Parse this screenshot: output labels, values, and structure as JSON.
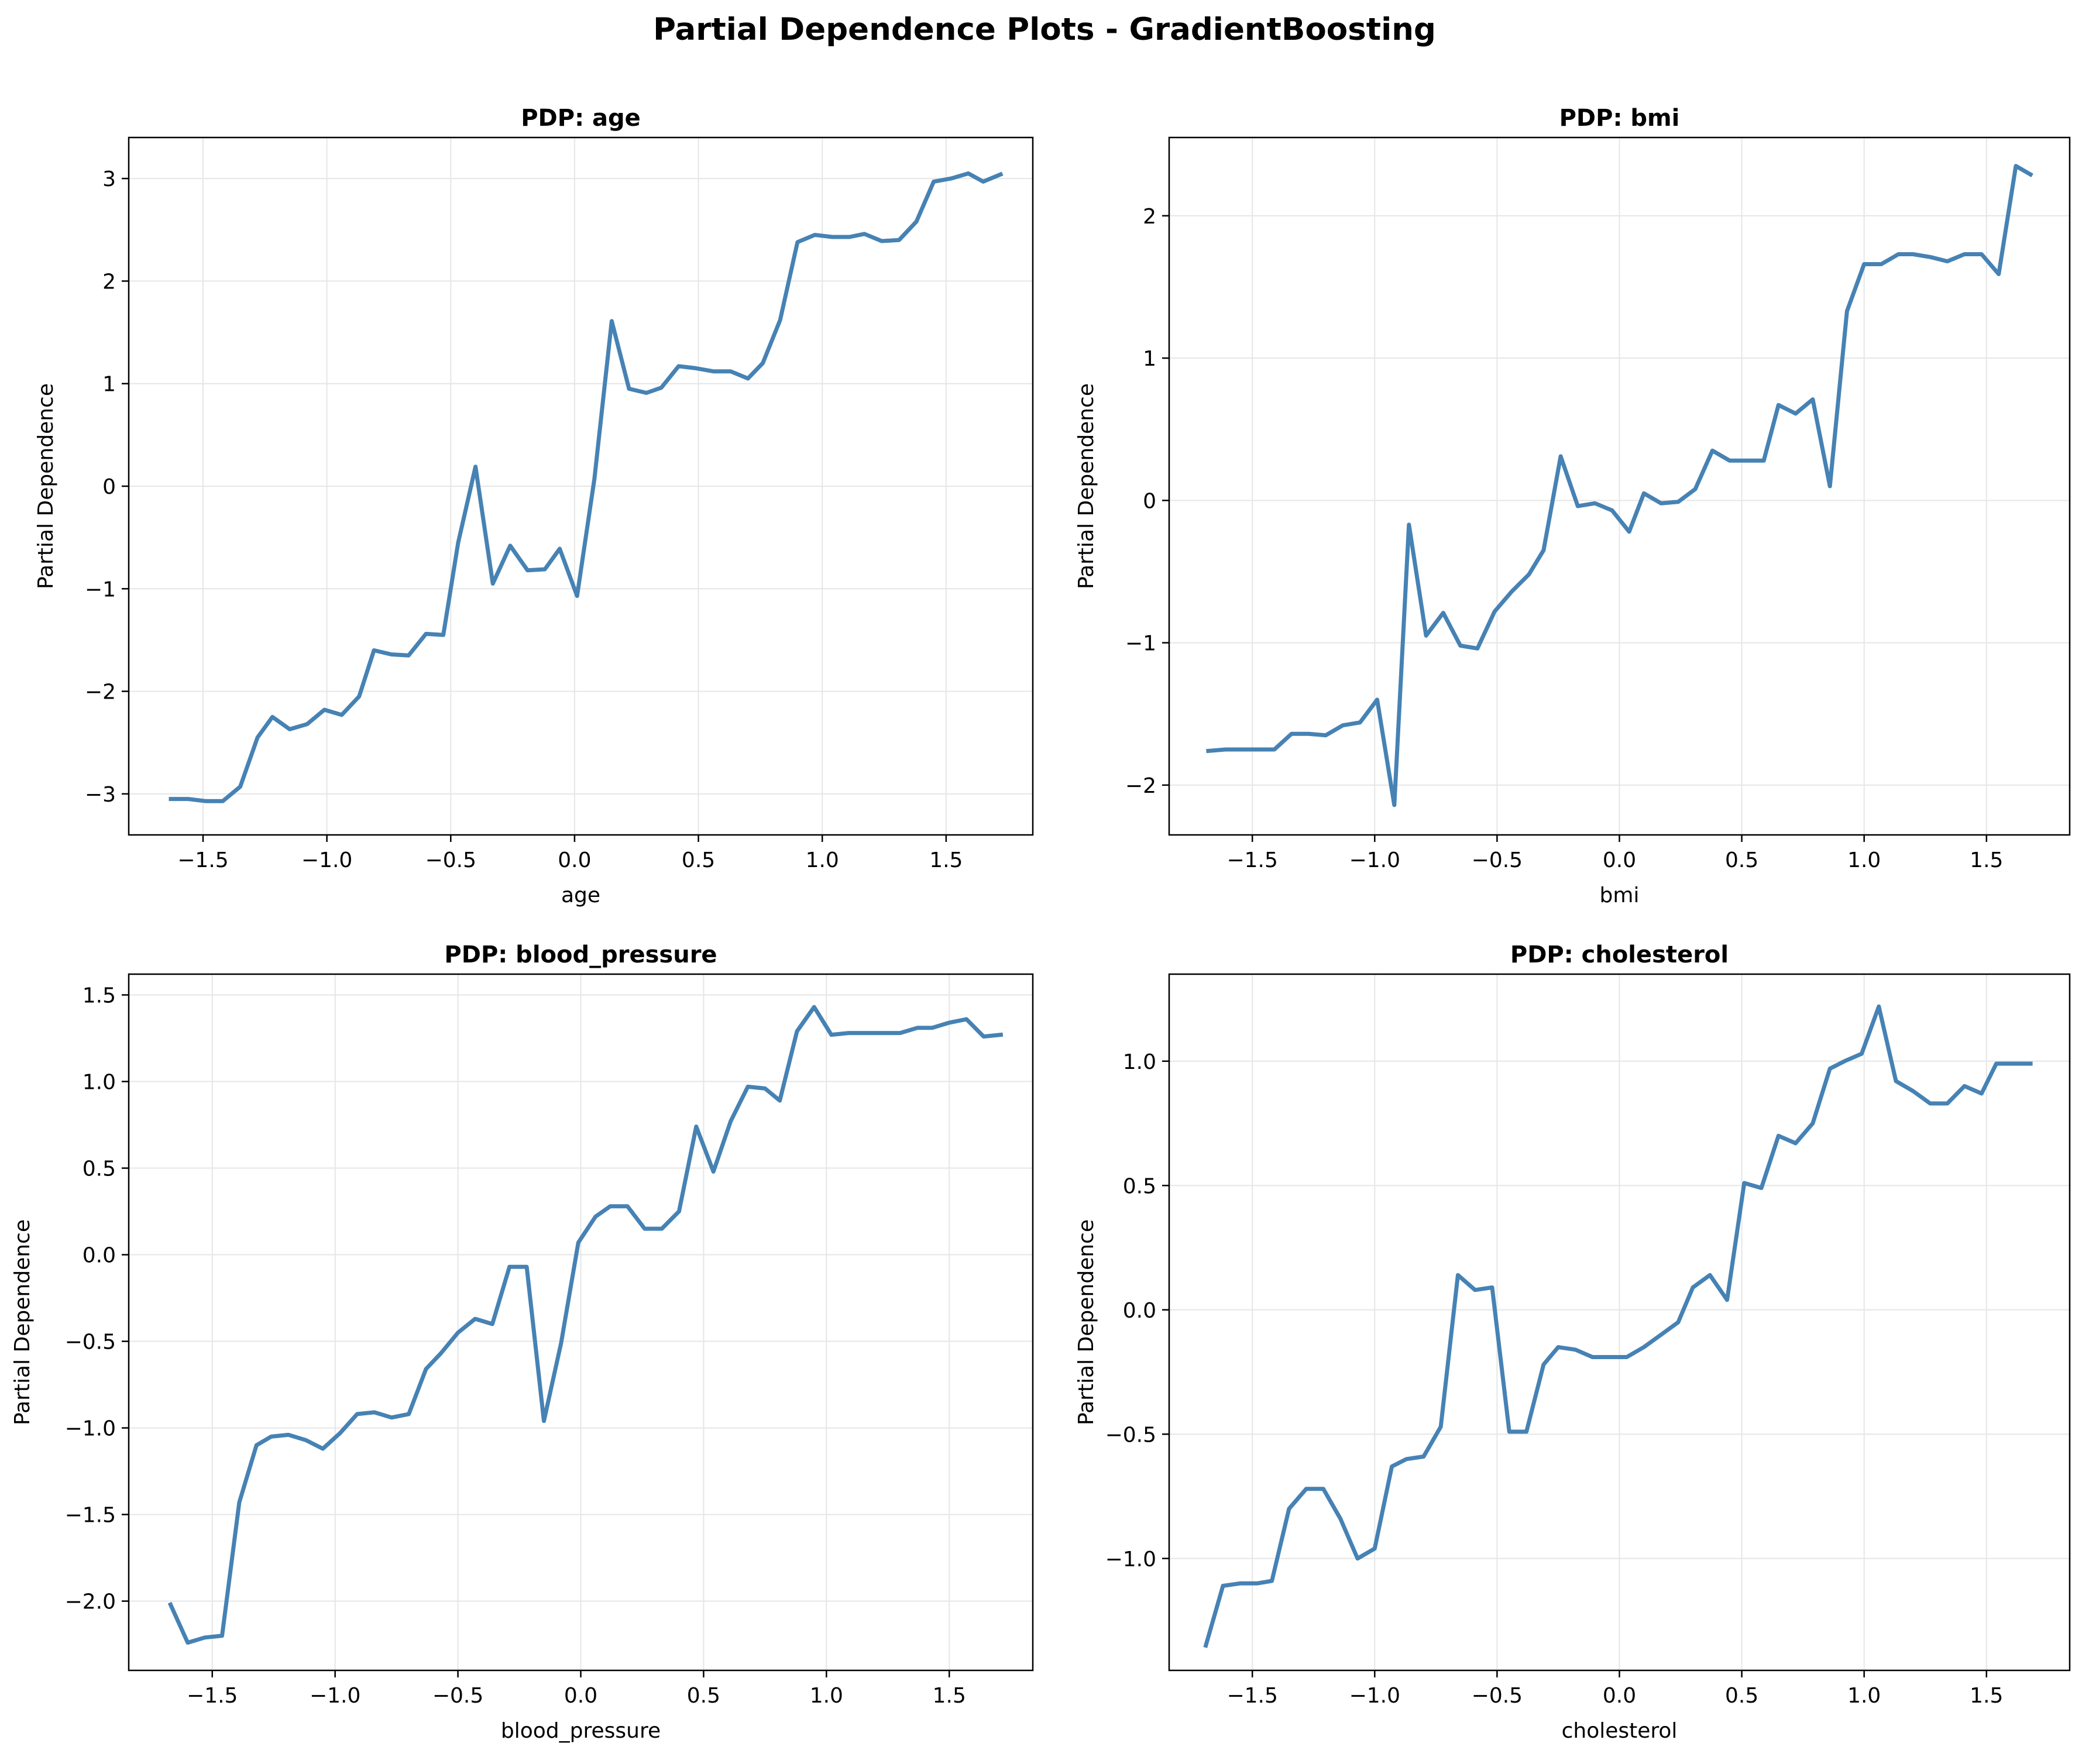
{
  "title": "Partial Dependence Plots - GradientBoosting",
  "line_color": "#4682b4",
  "grid_color": "#e6e6e6",
  "chart_data": [
    {
      "type": "line",
      "title": "PDP: age",
      "xlabel": "age",
      "ylabel": "Partial Dependence",
      "grid": true,
      "xlim": [
        -1.8,
        1.85
      ],
      "ylim": [
        -3.4,
        3.4
      ],
      "xticks": [
        -1.5,
        -1.0,
        -0.5,
        0.0,
        0.5,
        1.0,
        1.5
      ],
      "xtick_labels": [
        "−1.5",
        "−1.0",
        "−0.5",
        "0.0",
        "0.5",
        "1.0",
        "1.5"
      ],
      "yticks": [
        -3,
        -2,
        -1,
        0,
        1,
        2,
        3
      ],
      "ytick_labels": [
        "−3",
        "−2",
        "−1",
        "0",
        "1",
        "2",
        "3"
      ],
      "x": [
        -1.63,
        -1.56,
        -1.49,
        -1.42,
        -1.35,
        -1.28,
        -1.22,
        -1.15,
        -1.08,
        -1.01,
        -0.94,
        -0.87,
        -0.81,
        -0.74,
        -0.67,
        -0.6,
        -0.53,
        -0.47,
        -0.4,
        -0.33,
        -0.26,
        -0.19,
        -0.12,
        -0.06,
        0.01,
        0.08,
        0.15,
        0.22,
        0.29,
        0.35,
        0.42,
        0.49,
        0.56,
        0.63,
        0.7,
        0.76,
        0.83,
        0.9,
        0.97,
        1.04,
        1.11,
        1.17,
        1.24,
        1.31,
        1.38,
        1.45,
        1.52,
        1.59,
        1.65,
        1.72
      ],
      "y": [
        -3.05,
        -3.05,
        -3.07,
        -3.07,
        -2.93,
        -2.45,
        -2.25,
        -2.37,
        -2.32,
        -2.18,
        -2.23,
        -2.05,
        -1.6,
        -1.64,
        -1.65,
        -1.44,
        -1.45,
        -0.55,
        0.19,
        -0.95,
        -0.58,
        -0.82,
        -0.81,
        -0.61,
        -1.07,
        0.07,
        1.61,
        0.95,
        0.91,
        0.96,
        1.17,
        1.15,
        1.12,
        1.12,
        1.05,
        1.2,
        1.62,
        2.38,
        2.45,
        2.43,
        2.43,
        2.46,
        2.39,
        2.4,
        2.58,
        2.97,
        3.0,
        3.05,
        2.97,
        3.04
      ]
    },
    {
      "type": "line",
      "title": "PDP: bmi",
      "xlabel": "bmi",
      "ylabel": "Partial Dependence",
      "grid": true,
      "xlim": [
        -1.84,
        1.84
      ],
      "ylim": [
        -2.35,
        2.55
      ],
      "xticks": [
        -1.5,
        -1.0,
        -0.5,
        0.0,
        0.5,
        1.0,
        1.5
      ],
      "xtick_labels": [
        "−1.5",
        "−1.0",
        "−0.5",
        "0.0",
        "0.5",
        "1.0",
        "1.5"
      ],
      "yticks": [
        -2,
        -1,
        0,
        1,
        2
      ],
      "ytick_labels": [
        "−2",
        "−1",
        "0",
        "1",
        "2"
      ],
      "x": [
        -1.68,
        -1.61,
        -1.54,
        -1.47,
        -1.41,
        -1.34,
        -1.27,
        -1.2,
        -1.13,
        -1.06,
        -0.99,
        -0.92,
        -0.86,
        -0.79,
        -0.72,
        -0.65,
        -0.58,
        -0.51,
        -0.44,
        -0.37,
        -0.31,
        -0.24,
        -0.17,
        -0.1,
        -0.03,
        0.04,
        0.1,
        0.17,
        0.24,
        0.31,
        0.38,
        0.45,
        0.52,
        0.59,
        0.65,
        0.72,
        0.79,
        0.86,
        0.93,
        1.0,
        1.07,
        1.14,
        1.2,
        1.27,
        1.34,
        1.41,
        1.48,
        1.55,
        1.62,
        1.68
      ],
      "y": [
        -1.76,
        -1.75,
        -1.75,
        -1.75,
        -1.75,
        -1.64,
        -1.64,
        -1.65,
        -1.58,
        -1.56,
        -1.4,
        -2.14,
        -0.17,
        -0.95,
        -0.79,
        -1.02,
        -1.04,
        -0.78,
        -0.64,
        -0.52,
        -0.35,
        0.31,
        -0.04,
        -0.02,
        -0.07,
        -0.22,
        0.05,
        -0.02,
        -0.01,
        0.08,
        0.35,
        0.28,
        0.28,
        0.28,
        0.67,
        0.61,
        0.71,
        0.1,
        1.33,
        1.66,
        1.66,
        1.73,
        1.73,
        1.71,
        1.68,
        1.73,
        1.73,
        1.59,
        2.35,
        2.29
      ]
    },
    {
      "type": "line",
      "title": "PDP: blood_pressure",
      "xlabel": "blood_pressure",
      "ylabel": "Partial Dependence",
      "grid": true,
      "xlim": [
        -1.84,
        1.84
      ],
      "ylim": [
        -2.4,
        1.62
      ],
      "xticks": [
        -1.5,
        -1.0,
        -0.5,
        0.0,
        0.5,
        1.0,
        1.5
      ],
      "xtick_labels": [
        "−1.5",
        "−1.0",
        "−0.5",
        "0.0",
        "0.5",
        "1.0",
        "1.5"
      ],
      "yticks": [
        -2.0,
        -1.5,
        -1.0,
        -0.5,
        0.0,
        0.5,
        1.0,
        1.5
      ],
      "ytick_labels": [
        "−2.0",
        "−1.5",
        "−1.0",
        "−0.5",
        "0.0",
        "0.5",
        "1.0",
        "1.5"
      ],
      "x": [
        -1.67,
        -1.6,
        -1.53,
        -1.46,
        -1.39,
        -1.32,
        -1.26,
        -1.19,
        -1.12,
        -1.05,
        -0.98,
        -0.91,
        -0.84,
        -0.77,
        -0.7,
        -0.63,
        -0.57,
        -0.5,
        -0.43,
        -0.36,
        -0.29,
        -0.22,
        -0.15,
        -0.08,
        -0.01,
        0.06,
        0.12,
        0.19,
        0.26,
        0.33,
        0.4,
        0.47,
        0.54,
        0.61,
        0.68,
        0.75,
        0.81,
        0.88,
        0.95,
        1.02,
        1.09,
        1.16,
        1.23,
        1.3,
        1.37,
        1.43,
        1.5,
        1.57,
        1.64,
        1.71
      ],
      "y": [
        -2.02,
        -2.24,
        -2.21,
        -2.2,
        -1.43,
        -1.1,
        -1.05,
        -1.04,
        -1.07,
        -1.12,
        -1.03,
        -0.92,
        -0.91,
        -0.94,
        -0.92,
        -0.66,
        -0.57,
        -0.45,
        -0.37,
        -0.4,
        -0.07,
        -0.07,
        -0.96,
        -0.51,
        0.07,
        0.22,
        0.28,
        0.28,
        0.15,
        0.15,
        0.25,
        0.74,
        0.48,
        0.77,
        0.97,
        0.96,
        0.89,
        1.29,
        1.43,
        1.27,
        1.28,
        1.28,
        1.28,
        1.28,
        1.31,
        1.31,
        1.34,
        1.36,
        1.26,
        1.27
      ]
    },
    {
      "type": "line",
      "title": "PDP: cholesterol",
      "xlabel": "cholesterol",
      "ylabel": "Partial Dependence",
      "grid": true,
      "xlim": [
        -1.84,
        1.84
      ],
      "ylim": [
        -1.45,
        1.35
      ],
      "xticks": [
        -1.5,
        -1.0,
        -0.5,
        0.0,
        0.5,
        1.0,
        1.5
      ],
      "xtick_labels": [
        "−1.5",
        "−1.0",
        "−0.5",
        "0.0",
        "0.5",
        "1.0",
        "1.5"
      ],
      "yticks": [
        -1.0,
        -0.5,
        0.0,
        0.5,
        1.0
      ],
      "ytick_labels": [
        "−1.0",
        "−0.5",
        "0.0",
        "0.5",
        "1.0"
      ],
      "x": [
        -1.69,
        -1.62,
        -1.55,
        -1.48,
        -1.42,
        -1.35,
        -1.28,
        -1.21,
        -1.14,
        -1.07,
        -1.0,
        -0.93,
        -0.87,
        -0.8,
        -0.73,
        -0.66,
        -0.59,
        -0.52,
        -0.45,
        -0.38,
        -0.31,
        -0.25,
        -0.18,
        -0.11,
        -0.04,
        0.03,
        0.1,
        0.17,
        0.24,
        0.3,
        0.37,
        0.44,
        0.51,
        0.58,
        0.65,
        0.72,
        0.79,
        0.86,
        0.92,
        0.99,
        1.06,
        1.13,
        1.2,
        1.27,
        1.34,
        1.41,
        1.48,
        1.54,
        1.61,
        1.68
      ],
      "y": [
        -1.35,
        -1.11,
        -1.1,
        -1.1,
        -1.09,
        -0.8,
        -0.72,
        -0.72,
        -0.84,
        -1.0,
        -0.96,
        -0.63,
        -0.6,
        -0.59,
        -0.47,
        0.14,
        0.08,
        0.09,
        -0.49,
        -0.49,
        -0.22,
        -0.15,
        -0.16,
        -0.19,
        -0.19,
        -0.19,
        -0.15,
        -0.1,
        -0.05,
        0.09,
        0.14,
        0.04,
        0.51,
        0.49,
        0.7,
        0.67,
        0.75,
        0.97,
        1.0,
        1.03,
        1.22,
        0.92,
        0.88,
        0.83,
        0.83,
        0.9,
        0.87,
        0.99,
        0.99,
        0.99
      ]
    }
  ]
}
